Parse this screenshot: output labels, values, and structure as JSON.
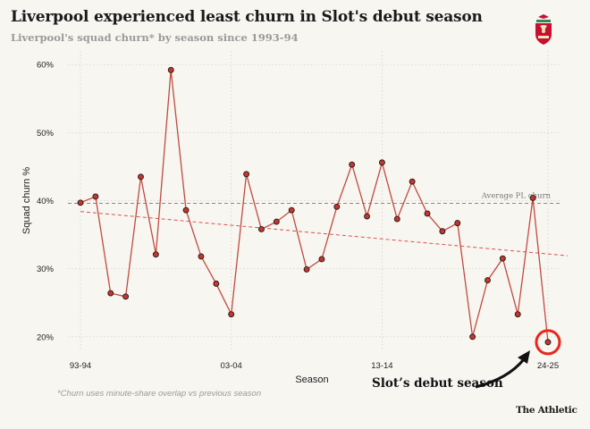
{
  "header": {
    "title": "Liverpool experienced least churn in Slot's debut season",
    "subtitle": "Liverpool's squad churn* by season since 1993-94"
  },
  "footnote": "*Churn uses minute-share overlap vs previous season",
  "brand": "The Athletic",
  "callout": "Slot’s debut season",
  "colors": {
    "background": "#f7f6f1",
    "line": "#c24a3f",
    "marker": "#c8352b",
    "trend": "#d9534f",
    "highlight": "#e8261d",
    "reference": "#8a8a8a"
  },
  "icons": {
    "crest": "liverpool-crest-icon"
  },
  "chart_data": {
    "type": "line",
    "xlabel": "Season",
    "ylabel": "Squad churn %",
    "x_tick_labels": [
      "93-94",
      "03-04",
      "13-14",
      "24-25"
    ],
    "x_tick_indices": [
      0,
      10,
      20,
      31
    ],
    "ylim": [
      18,
      62
    ],
    "y_ticks": [
      20,
      30,
      40,
      50,
      60
    ],
    "y_tick_labels": [
      "20%",
      "30%",
      "40%",
      "50%",
      "60%"
    ],
    "grid": true,
    "series": [
      {
        "values": [
          39.7,
          40.6,
          26.4,
          25.9,
          43.5,
          32.1,
          59.2,
          38.6,
          31.8,
          27.8,
          23.3,
          43.9,
          35.8,
          36.9,
          38.6,
          29.9,
          31.4,
          39.1,
          45.3,
          37.7,
          45.6,
          37.3,
          42.8,
          38.1,
          35.5,
          36.7,
          20.0,
          28.3,
          31.5,
          23.3,
          40.4,
          19.2
        ]
      }
    ],
    "trendline": {
      "start": 38.4,
      "end": 31.9
    },
    "reference_line": {
      "value": 39.6,
      "label": "Average PL churn"
    },
    "highlight": {
      "index": 31
    }
  }
}
